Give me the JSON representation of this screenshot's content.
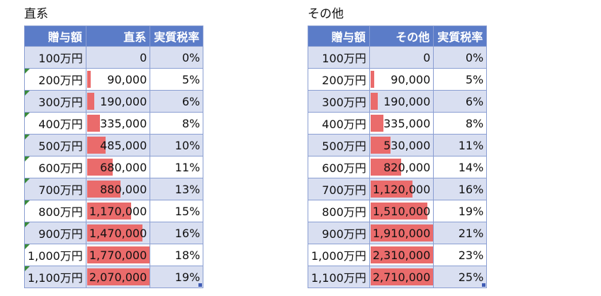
{
  "tables": [
    {
      "title": "直系",
      "headers": [
        "贈与額",
        "直系",
        "実質税率"
      ],
      "rows": [
        {
          "amount": "100万円",
          "tax": "0",
          "rate": "0%",
          "tax_value": 0
        },
        {
          "amount": "200万円",
          "tax": "90,000",
          "rate": "5%",
          "tax_value": 90000
        },
        {
          "amount": "300万円",
          "tax": "190,000",
          "rate": "6%",
          "tax_value": 190000
        },
        {
          "amount": "400万円",
          "tax": "335,000",
          "rate": "8%",
          "tax_value": 335000
        },
        {
          "amount": "500万円",
          "tax": "485,000",
          "rate": "10%",
          "tax_value": 485000
        },
        {
          "amount": "600万円",
          "tax": "680,000",
          "rate": "11%",
          "tax_value": 680000
        },
        {
          "amount": "700万円",
          "tax": "880,000",
          "rate": "13%",
          "tax_value": 880000
        },
        {
          "amount": "800万円",
          "tax": "1,170,000",
          "rate": "15%",
          "tax_value": 1170000
        },
        {
          "amount": "900万円",
          "tax": "1,470,000",
          "rate": "16%",
          "tax_value": 1470000
        },
        {
          "amount": "1,000万円",
          "tax": "1,770,000",
          "rate": "18%",
          "tax_value": 1770000
        },
        {
          "amount": "1,100万円",
          "tax": "2,070,000",
          "rate": "19%",
          "tax_value": 2070000
        }
      ]
    },
    {
      "title": "その他",
      "headers": [
        "贈与額",
        "その他",
        "実質税率"
      ],
      "rows": [
        {
          "amount": "100万円",
          "tax": "0",
          "rate": "0%",
          "tax_value": 0
        },
        {
          "amount": "200万円",
          "tax": "90,000",
          "rate": "5%",
          "tax_value": 90000
        },
        {
          "amount": "300万円",
          "tax": "190,000",
          "rate": "6%",
          "tax_value": 190000
        },
        {
          "amount": "400万円",
          "tax": "335,000",
          "rate": "8%",
          "tax_value": 335000
        },
        {
          "amount": "500万円",
          "tax": "530,000",
          "rate": "11%",
          "tax_value": 530000
        },
        {
          "amount": "600万円",
          "tax": "820,000",
          "rate": "14%",
          "tax_value": 820000
        },
        {
          "amount": "700万円",
          "tax": "1,120,000",
          "rate": "16%",
          "tax_value": 1120000
        },
        {
          "amount": "800万円",
          "tax": "1,510,000",
          "rate": "19%",
          "tax_value": 1510000
        },
        {
          "amount": "900万円",
          "tax": "1,910,000",
          "rate": "21%",
          "tax_value": 1910000
        },
        {
          "amount": "1,000万円",
          "tax": "2,310,000",
          "rate": "23%",
          "tax_value": 2310000
        },
        {
          "amount": "1,100万円",
          "tax": "2,710,000",
          "rate": "25%",
          "tax_value": 2710000
        }
      ]
    }
  ],
  "colors": {
    "header_bg": "#5b7cc8",
    "band_row": "#d9dff1",
    "data_bar": "#ea6b6b",
    "error_indicator": "#3a8a3a"
  }
}
